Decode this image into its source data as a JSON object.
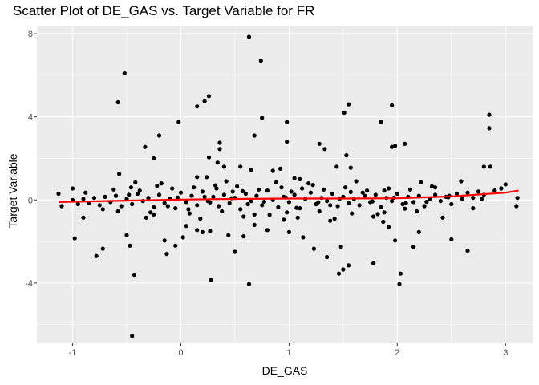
{
  "chart_data": {
    "type": "scatter",
    "title": "Scatter Plot of DE_GAS vs. Target Variable for FR",
    "xlabel": "DE_GAS",
    "ylabel": "Target Variable",
    "xlim": [
      -1.33,
      3.25
    ],
    "ylim": [
      -6.9,
      8.35
    ],
    "x_ticks": [
      -1,
      0,
      1,
      2,
      3
    ],
    "x_tick_labels": [
      "-1",
      "0",
      "1",
      "2",
      "3"
    ],
    "y_ticks": [
      -4,
      0,
      4,
      8
    ],
    "y_tick_labels": [
      "-4",
      "0",
      "4",
      "8"
    ],
    "grid": true,
    "legend": "none",
    "colors": {
      "panel": "#ebebeb",
      "grid": "#ffffff",
      "points": "#000000",
      "trend": "#ff0000"
    },
    "series": [
      {
        "values": [
          [
            0.63,
            7.85
          ],
          [
            0.74,
            6.7
          ],
          [
            -0.52,
            6.1
          ],
          [
            -0.58,
            4.7
          ],
          [
            0.26,
            5.0
          ],
          [
            0.22,
            4.75
          ],
          [
            0.15,
            4.5
          ],
          [
            0.75,
            3.95
          ],
          [
            -0.02,
            3.75
          ],
          [
            0.98,
            3.75
          ],
          [
            1.55,
            4.6
          ],
          [
            1.51,
            4.2
          ],
          [
            1.95,
            4.55
          ],
          [
            1.85,
            3.75
          ],
          [
            2.85,
            4.1
          ],
          [
            2.85,
            3.45
          ],
          [
            -0.2,
            3.1
          ],
          [
            0.68,
            3.1
          ],
          [
            0.36,
            2.75
          ],
          [
            0.36,
            2.45
          ],
          [
            0.98,
            2.8
          ],
          [
            1.28,
            2.7
          ],
          [
            1.33,
            2.45
          ],
          [
            1.53,
            2.15
          ],
          [
            1.98,
            2.6
          ],
          [
            1.95,
            2.55
          ],
          [
            2.07,
            2.7
          ],
          [
            -0.33,
            2.55
          ],
          [
            -0.25,
            2.0
          ],
          [
            0.26,
            2.05
          ],
          [
            0.34,
            1.8
          ],
          [
            0.4,
            1.6
          ],
          [
            0.55,
            1.6
          ],
          [
            0.65,
            1.45
          ],
          [
            0.85,
            1.4
          ],
          [
            0.92,
            1.5
          ],
          [
            1.44,
            1.6
          ],
          [
            1.57,
            1.55
          ],
          [
            2.8,
            1.6
          ],
          [
            2.86,
            1.6
          ],
          [
            0.15,
            1.1
          ],
          [
            0.24,
            1.1
          ],
          [
            1.05,
            1.05
          ],
          [
            1.1,
            1.0
          ],
          [
            -0.57,
            1.25
          ],
          [
            2.59,
            0.9
          ],
          [
            3.0,
            0.75
          ],
          [
            2.96,
            0.55
          ],
          [
            -1.13,
            0.3
          ],
          [
            -1.0,
            0.55
          ],
          [
            -0.46,
            0.6
          ],
          [
            0.48,
            0.4
          ],
          [
            1.88,
            0.45
          ],
          [
            2.35,
            0.6
          ],
          [
            -1.1,
            -0.3
          ],
          [
            -0.9,
            -0.85
          ],
          [
            -0.98,
            -1.85
          ],
          [
            -0.72,
            -2.35
          ],
          [
            -0.78,
            -2.7
          ],
          [
            -0.5,
            -1.7
          ],
          [
            -0.47,
            -2.2
          ],
          [
            -0.43,
            -3.6
          ],
          [
            -0.45,
            -6.55
          ],
          [
            -0.25,
            -0.7
          ],
          [
            -0.15,
            -1.95
          ],
          [
            -0.13,
            -2.6
          ],
          [
            -0.05,
            -2.2
          ],
          [
            0.02,
            -1.8
          ],
          [
            0.05,
            -1.25
          ],
          [
            0.15,
            -1.45
          ],
          [
            0.2,
            -1.55
          ],
          [
            0.27,
            -1.5
          ],
          [
            0.28,
            -3.85
          ],
          [
            0.44,
            -1.7
          ],
          [
            0.58,
            -1.75
          ],
          [
            0.68,
            -1.2
          ],
          [
            0.63,
            -4.05
          ],
          [
            0.5,
            -2.5
          ],
          [
            0.8,
            -1.45
          ],
          [
            0.95,
            -0.95
          ],
          [
            1.0,
            -1.55
          ],
          [
            1.13,
            -1.8
          ],
          [
            1.23,
            -2.35
          ],
          [
            1.35,
            -2.75
          ],
          [
            1.38,
            -1.0
          ],
          [
            1.48,
            -2.25
          ],
          [
            1.5,
            -3.35
          ],
          [
            1.46,
            -3.55
          ],
          [
            1.55,
            -3.15
          ],
          [
            1.78,
            -3.05
          ],
          [
            1.87,
            -1.05
          ],
          [
            1.92,
            -1.3
          ],
          [
            1.98,
            -1.95
          ],
          [
            2.03,
            -3.55
          ],
          [
            2.02,
            -4.05
          ],
          [
            2.15,
            -2.25
          ],
          [
            2.2,
            -1.55
          ],
          [
            2.5,
            -1.9
          ],
          [
            2.65,
            -2.45
          ],
          [
            3.1,
            -0.3
          ],
          [
            2.7,
            -0.4
          ],
          [
            3.11,
            0.1
          ],
          [
            -1.0,
            0.0
          ],
          [
            -0.95,
            -0.2
          ],
          [
            -0.9,
            0.05
          ],
          [
            -0.85,
            -0.15
          ],
          [
            -0.8,
            0.1
          ],
          [
            -0.75,
            -0.25
          ],
          [
            -0.7,
            0.15
          ],
          [
            -0.65,
            -0.1
          ],
          [
            -0.6,
            0.2
          ],
          [
            -0.55,
            -0.3
          ],
          [
            -0.5,
            0.05
          ],
          [
            -0.45,
            -0.2
          ],
          [
            -0.4,
            0.3
          ],
          [
            -0.35,
            -0.05
          ],
          [
            -0.3,
            0.1
          ],
          [
            -0.25,
            -0.35
          ],
          [
            -0.2,
            0.25
          ],
          [
            -0.15,
            -0.15
          ],
          [
            -0.1,
            0.05
          ],
          [
            -0.05,
            -0.4
          ],
          [
            0.0,
            0.35
          ],
          [
            0.05,
            -0.1
          ],
          [
            0.1,
            0.2
          ],
          [
            0.15,
            -0.25
          ],
          [
            0.2,
            0.4
          ],
          [
            0.25,
            -0.05
          ],
          [
            0.3,
            0.15
          ],
          [
            0.35,
            -0.3
          ],
          [
            0.4,
            0.25
          ],
          [
            0.45,
            -0.15
          ],
          [
            0.5,
            0.1
          ],
          [
            0.55,
            -0.45
          ],
          [
            0.6,
            0.3
          ],
          [
            0.65,
            -0.05
          ],
          [
            0.7,
            0.2
          ],
          [
            0.75,
            -0.25
          ],
          [
            0.8,
            0.45
          ],
          [
            0.85,
            0.0
          ],
          [
            0.9,
            -0.35
          ],
          [
            0.95,
            0.15
          ],
          [
            1.0,
            -0.1
          ],
          [
            1.05,
            0.25
          ],
          [
            1.1,
            -0.4
          ],
          [
            1.15,
            0.05
          ],
          [
            1.2,
            0.35
          ],
          [
            1.25,
            -0.2
          ],
          [
            1.3,
            0.1
          ],
          [
            1.35,
            -0.05
          ],
          [
            1.4,
            0.3
          ],
          [
            1.45,
            -0.3
          ],
          [
            1.5,
            0.15
          ],
          [
            1.55,
            -0.15
          ],
          [
            1.6,
            0.05
          ],
          [
            1.65,
            -0.25
          ],
          [
            1.7,
            0.2
          ],
          [
            1.75,
            -0.1
          ],
          [
            1.8,
            0.25
          ],
          [
            1.85,
            -0.35
          ],
          [
            1.9,
            0.1
          ],
          [
            1.95,
            -0.05
          ],
          [
            2.0,
            0.3
          ],
          [
            2.05,
            -0.2
          ],
          [
            2.1,
            0.15
          ],
          [
            2.15,
            -0.1
          ],
          [
            2.2,
            0.2
          ],
          [
            2.25,
            -0.3
          ],
          [
            2.3,
            0.05
          ],
          [
            2.35,
            0.25
          ],
          [
            2.4,
            -0.05
          ],
          [
            2.45,
            0.15
          ],
          [
            2.5,
            -0.2
          ],
          [
            2.55,
            0.3
          ],
          [
            2.6,
            0.05
          ],
          [
            2.65,
            0.35
          ],
          [
            2.7,
            0.1
          ],
          [
            2.75,
            0.4
          ],
          [
            2.8,
            0.25
          ],
          [
            2.9,
            0.45
          ],
          [
            -0.62,
            0.5
          ],
          [
            -0.38,
            0.45
          ],
          [
            -0.08,
            0.55
          ],
          [
            0.12,
            0.6
          ],
          [
            0.33,
            0.55
          ],
          [
            0.52,
            0.65
          ],
          [
            0.72,
            0.5
          ],
          [
            0.93,
            0.6
          ],
          [
            1.12,
            0.55
          ],
          [
            1.32,
            0.5
          ],
          [
            1.52,
            0.6
          ],
          [
            1.72,
            0.45
          ],
          [
            1.92,
            0.55
          ],
          [
            2.12,
            0.5
          ],
          [
            2.32,
            0.65
          ],
          [
            -0.58,
            -0.55
          ],
          [
            -0.28,
            -0.6
          ],
          [
            0.08,
            -0.65
          ],
          [
            0.38,
            -0.55
          ],
          [
            0.68,
            -0.7
          ],
          [
            0.98,
            -0.6
          ],
          [
            1.28,
            -0.55
          ],
          [
            1.58,
            -0.65
          ],
          [
            1.88,
            -0.6
          ],
          [
            2.18,
            -0.55
          ],
          [
            -0.42,
            0.85
          ],
          [
            -0.18,
            0.8
          ],
          [
            0.42,
            0.9
          ],
          [
            0.88,
            0.85
          ],
          [
            1.18,
            0.8
          ],
          [
            1.62,
            0.9
          ],
          [
            2.22,
            0.85
          ],
          [
            -0.32,
            -0.85
          ],
          [
            0.18,
            -0.9
          ],
          [
            0.58,
            -0.8
          ],
          [
            1.08,
            -0.85
          ],
          [
            1.42,
            -0.9
          ],
          [
            1.78,
            -0.8
          ],
          [
            2.42,
            -0.85
          ],
          [
            -0.88,
            0.35
          ],
          [
            -0.72,
            -0.45
          ],
          [
            -0.48,
            0.25
          ],
          [
            -0.12,
            -0.3
          ],
          [
            0.22,
            0.15
          ],
          [
            0.62,
            -0.2
          ],
          [
            1.02,
            0.4
          ],
          [
            1.38,
            -0.25
          ],
          [
            1.68,
            0.35
          ],
          [
            2.08,
            -0.15
          ],
          [
            2.48,
            0.2
          ],
          [
            2.78,
            0.05
          ],
          [
            -0.03,
            0.12
          ],
          [
            0.47,
            0.08
          ],
          [
            0.97,
            0.12
          ],
          [
            1.47,
            0.07
          ],
          [
            1.97,
            0.11
          ],
          [
            2.47,
            0.13
          ],
          [
            0.27,
            -0.12
          ],
          [
            0.77,
            -0.08
          ],
          [
            1.27,
            -0.11
          ],
          [
            1.77,
            -0.07
          ],
          [
            2.27,
            -0.09
          ],
          [
            0.07,
            -0.45
          ],
          [
            0.57,
            0.42
          ],
          [
            1.07,
            -0.38
          ],
          [
            1.57,
            0.38
          ],
          [
            2.07,
            -0.42
          ],
          [
            0.32,
            0.7
          ],
          [
            0.82,
            -0.72
          ],
          [
            1.22,
            0.72
          ],
          [
            1.82,
            -0.68
          ],
          [
            -0.22,
            0.68
          ]
        ]
      }
    ],
    "trend": [
      [
        -1.13,
        -0.1
      ],
      [
        -0.5,
        -0.03
      ],
      [
        0.0,
        0.02
      ],
      [
        0.5,
        0.05
      ],
      [
        1.0,
        0.07
      ],
      [
        1.5,
        0.07
      ],
      [
        2.0,
        0.08
      ],
      [
        2.5,
        0.17
      ],
      [
        3.0,
        0.35
      ],
      [
        3.12,
        0.45
      ]
    ]
  }
}
